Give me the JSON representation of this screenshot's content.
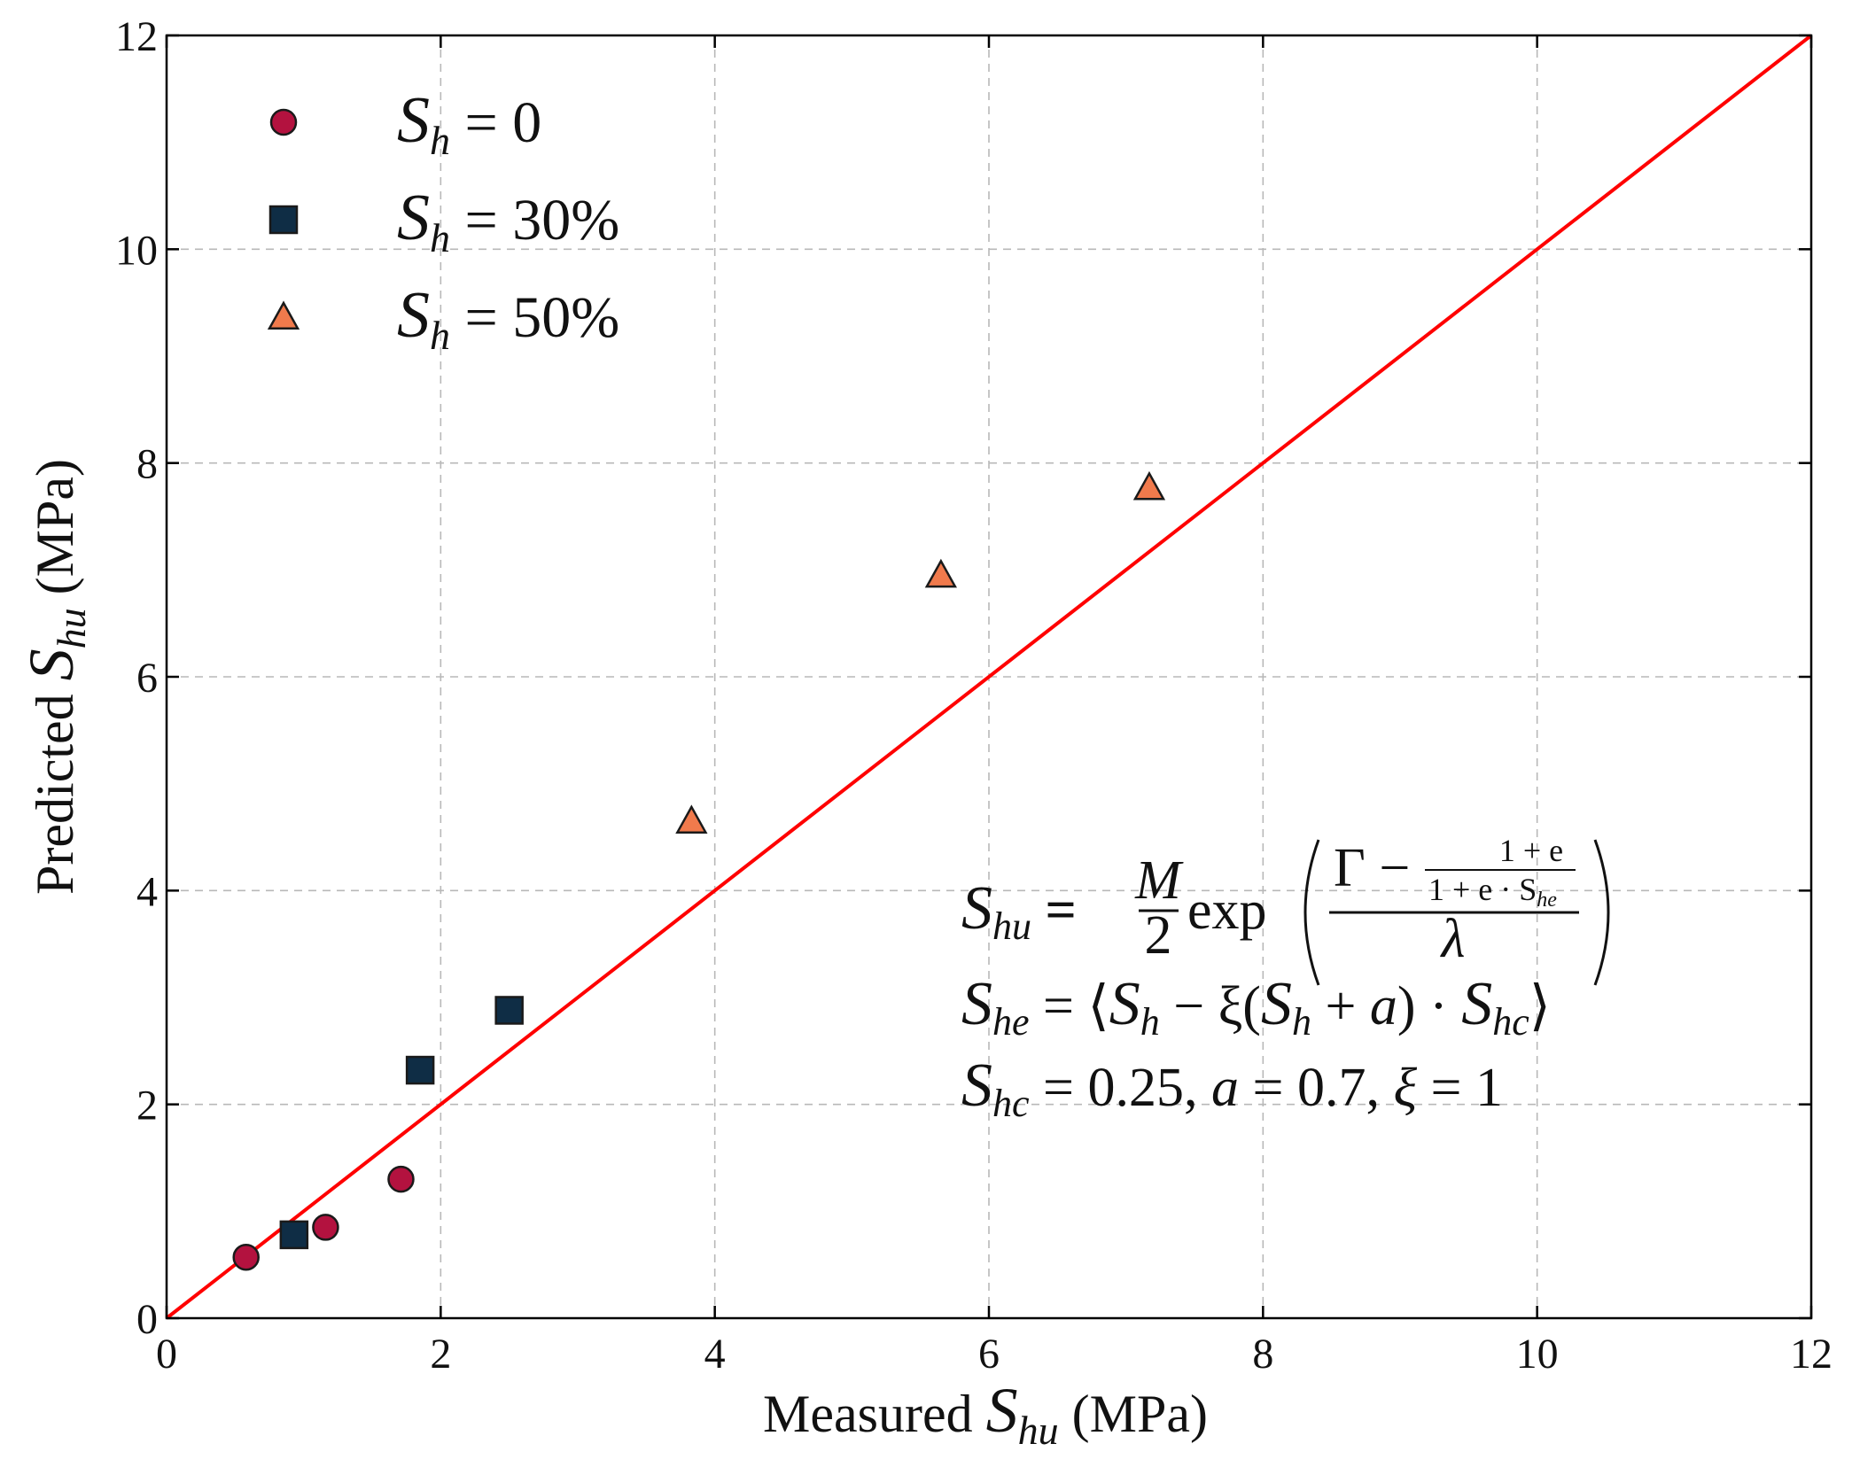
{
  "chart_data": {
    "type": "scatter",
    "title": "",
    "xlabel": {
      "prefix": "Measured ",
      "symbol": "S",
      "subscript": "hu",
      "suffix": " (MPa)"
    },
    "ylabel": {
      "prefix": "Predicted ",
      "symbol": "S",
      "subscript": "hu",
      "suffix": " (MPa)"
    },
    "xlim": [
      0,
      12
    ],
    "ylim": [
      0,
      12
    ],
    "xticks": [
      0,
      2,
      4,
      6,
      8,
      10,
      12
    ],
    "yticks": [
      0,
      2,
      4,
      6,
      8,
      10,
      12
    ],
    "grid": true,
    "legend_position": "top-left",
    "reference_line": {
      "name": "y = x",
      "x": [
        0,
        12
      ],
      "y": [
        0,
        12
      ],
      "color": "#ff0000"
    },
    "series": [
      {
        "name": "S_h = 0",
        "legend_symbol": "S",
        "legend_subscript": "h",
        "legend_value": " = 0",
        "marker": "circle",
        "color": "#b3123f",
        "points": [
          {
            "x": 0.58,
            "y": 0.57
          },
          {
            "x": 1.16,
            "y": 0.85
          },
          {
            "x": 1.71,
            "y": 1.3
          }
        ]
      },
      {
        "name": "S_h = 30%",
        "legend_symbol": "S",
        "legend_subscript": "h",
        "legend_value": " = 30%",
        "marker": "square",
        "color": "#0f2d45",
        "points": [
          {
            "x": 0.93,
            "y": 0.78
          },
          {
            "x": 1.85,
            "y": 2.32
          },
          {
            "x": 2.5,
            "y": 2.88
          }
        ]
      },
      {
        "name": "S_h = 50%",
        "legend_symbol": "S",
        "legend_subscript": "h",
        "legend_value": " = 50%",
        "marker": "triangle",
        "color": "#f07a4c",
        "points": [
          {
            "x": 3.83,
            "y": 4.65
          },
          {
            "x": 5.65,
            "y": 6.95
          },
          {
            "x": 7.17,
            "y": 7.77
          }
        ]
      }
    ],
    "annotations": {
      "eq1": {
        "lhs": "S",
        "lhs_sub": "hu",
        "eq": " = ",
        "frac_num": "M",
        "frac_den": "2",
        "fn": "exp",
        "gamma_minus": "Γ −",
        "inner_num": "1 + e",
        "inner_den": "1 + e · S",
        "inner_den_sub": "he",
        "outer_den": "λ"
      },
      "eq2": {
        "lhs": "S",
        "lhs_sub": "he",
        "eq": " = ⟨",
        "t1": "S",
        "t1_sub": "h",
        "t2": " − ξ(",
        "t3": "S",
        "t3_sub": "h",
        "t4": " + ",
        "t5": "a",
        "t6": ") · ",
        "t7": "S",
        "t7_sub": "hc",
        "t8": "⟩"
      },
      "eq3": {
        "lhs": "S",
        "lhs_sub": "hc",
        "p1": " =  0.25, ",
        "a": "a",
        "p2": " =  0.7, ",
        "xi": "ξ",
        "p3": " =  1"
      }
    }
  }
}
